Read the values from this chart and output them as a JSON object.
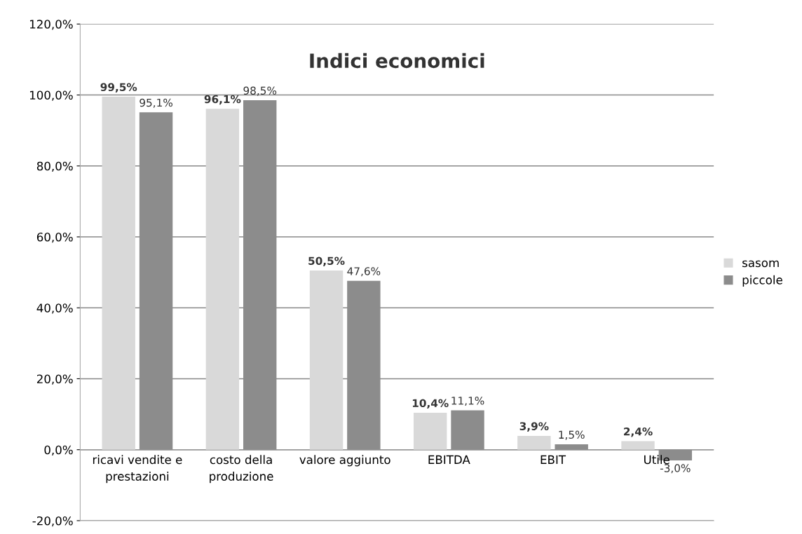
{
  "chart_data": {
    "type": "bar",
    "title": "Indici economici",
    "categories": [
      "ricavi vendite e\nprestazioni",
      "costo della\nproduzione",
      "valore aggiunto",
      "EBITDA",
      "EBIT",
      "Utile"
    ],
    "series": [
      {
        "name": "sasom",
        "color": "#d9d9d9",
        "values": [
          99.5,
          96.1,
          50.5,
          10.4,
          3.9,
          2.4
        ],
        "value_labels": [
          "99,5%",
          "96,1%",
          "50,5%",
          "10,4%",
          "3,9%",
          "2,4%"
        ]
      },
      {
        "name": "piccole",
        "color": "#8c8c8c",
        "values": [
          95.1,
          98.5,
          47.6,
          11.1,
          1.5,
          -3.0
        ],
        "value_labels": [
          "95,1%",
          "98,5%",
          "47,6%",
          "11,1%",
          "1,5%",
          "-3,0%"
        ]
      }
    ],
    "ylim": [
      -20,
      120
    ],
    "yticks": [
      {
        "value": -20,
        "label": "-20,0%"
      },
      {
        "value": 0,
        "label": "0,0%"
      },
      {
        "value": 20,
        "label": "20,0%"
      },
      {
        "value": 40,
        "label": "40,0%"
      },
      {
        "value": 60,
        "label": "60,0%"
      },
      {
        "value": 80,
        "label": "80,0%"
      },
      {
        "value": 100,
        "label": "100,0%"
      },
      {
        "value": 120,
        "label": "120,0%"
      }
    ],
    "grid": "y",
    "legend": "right"
  }
}
